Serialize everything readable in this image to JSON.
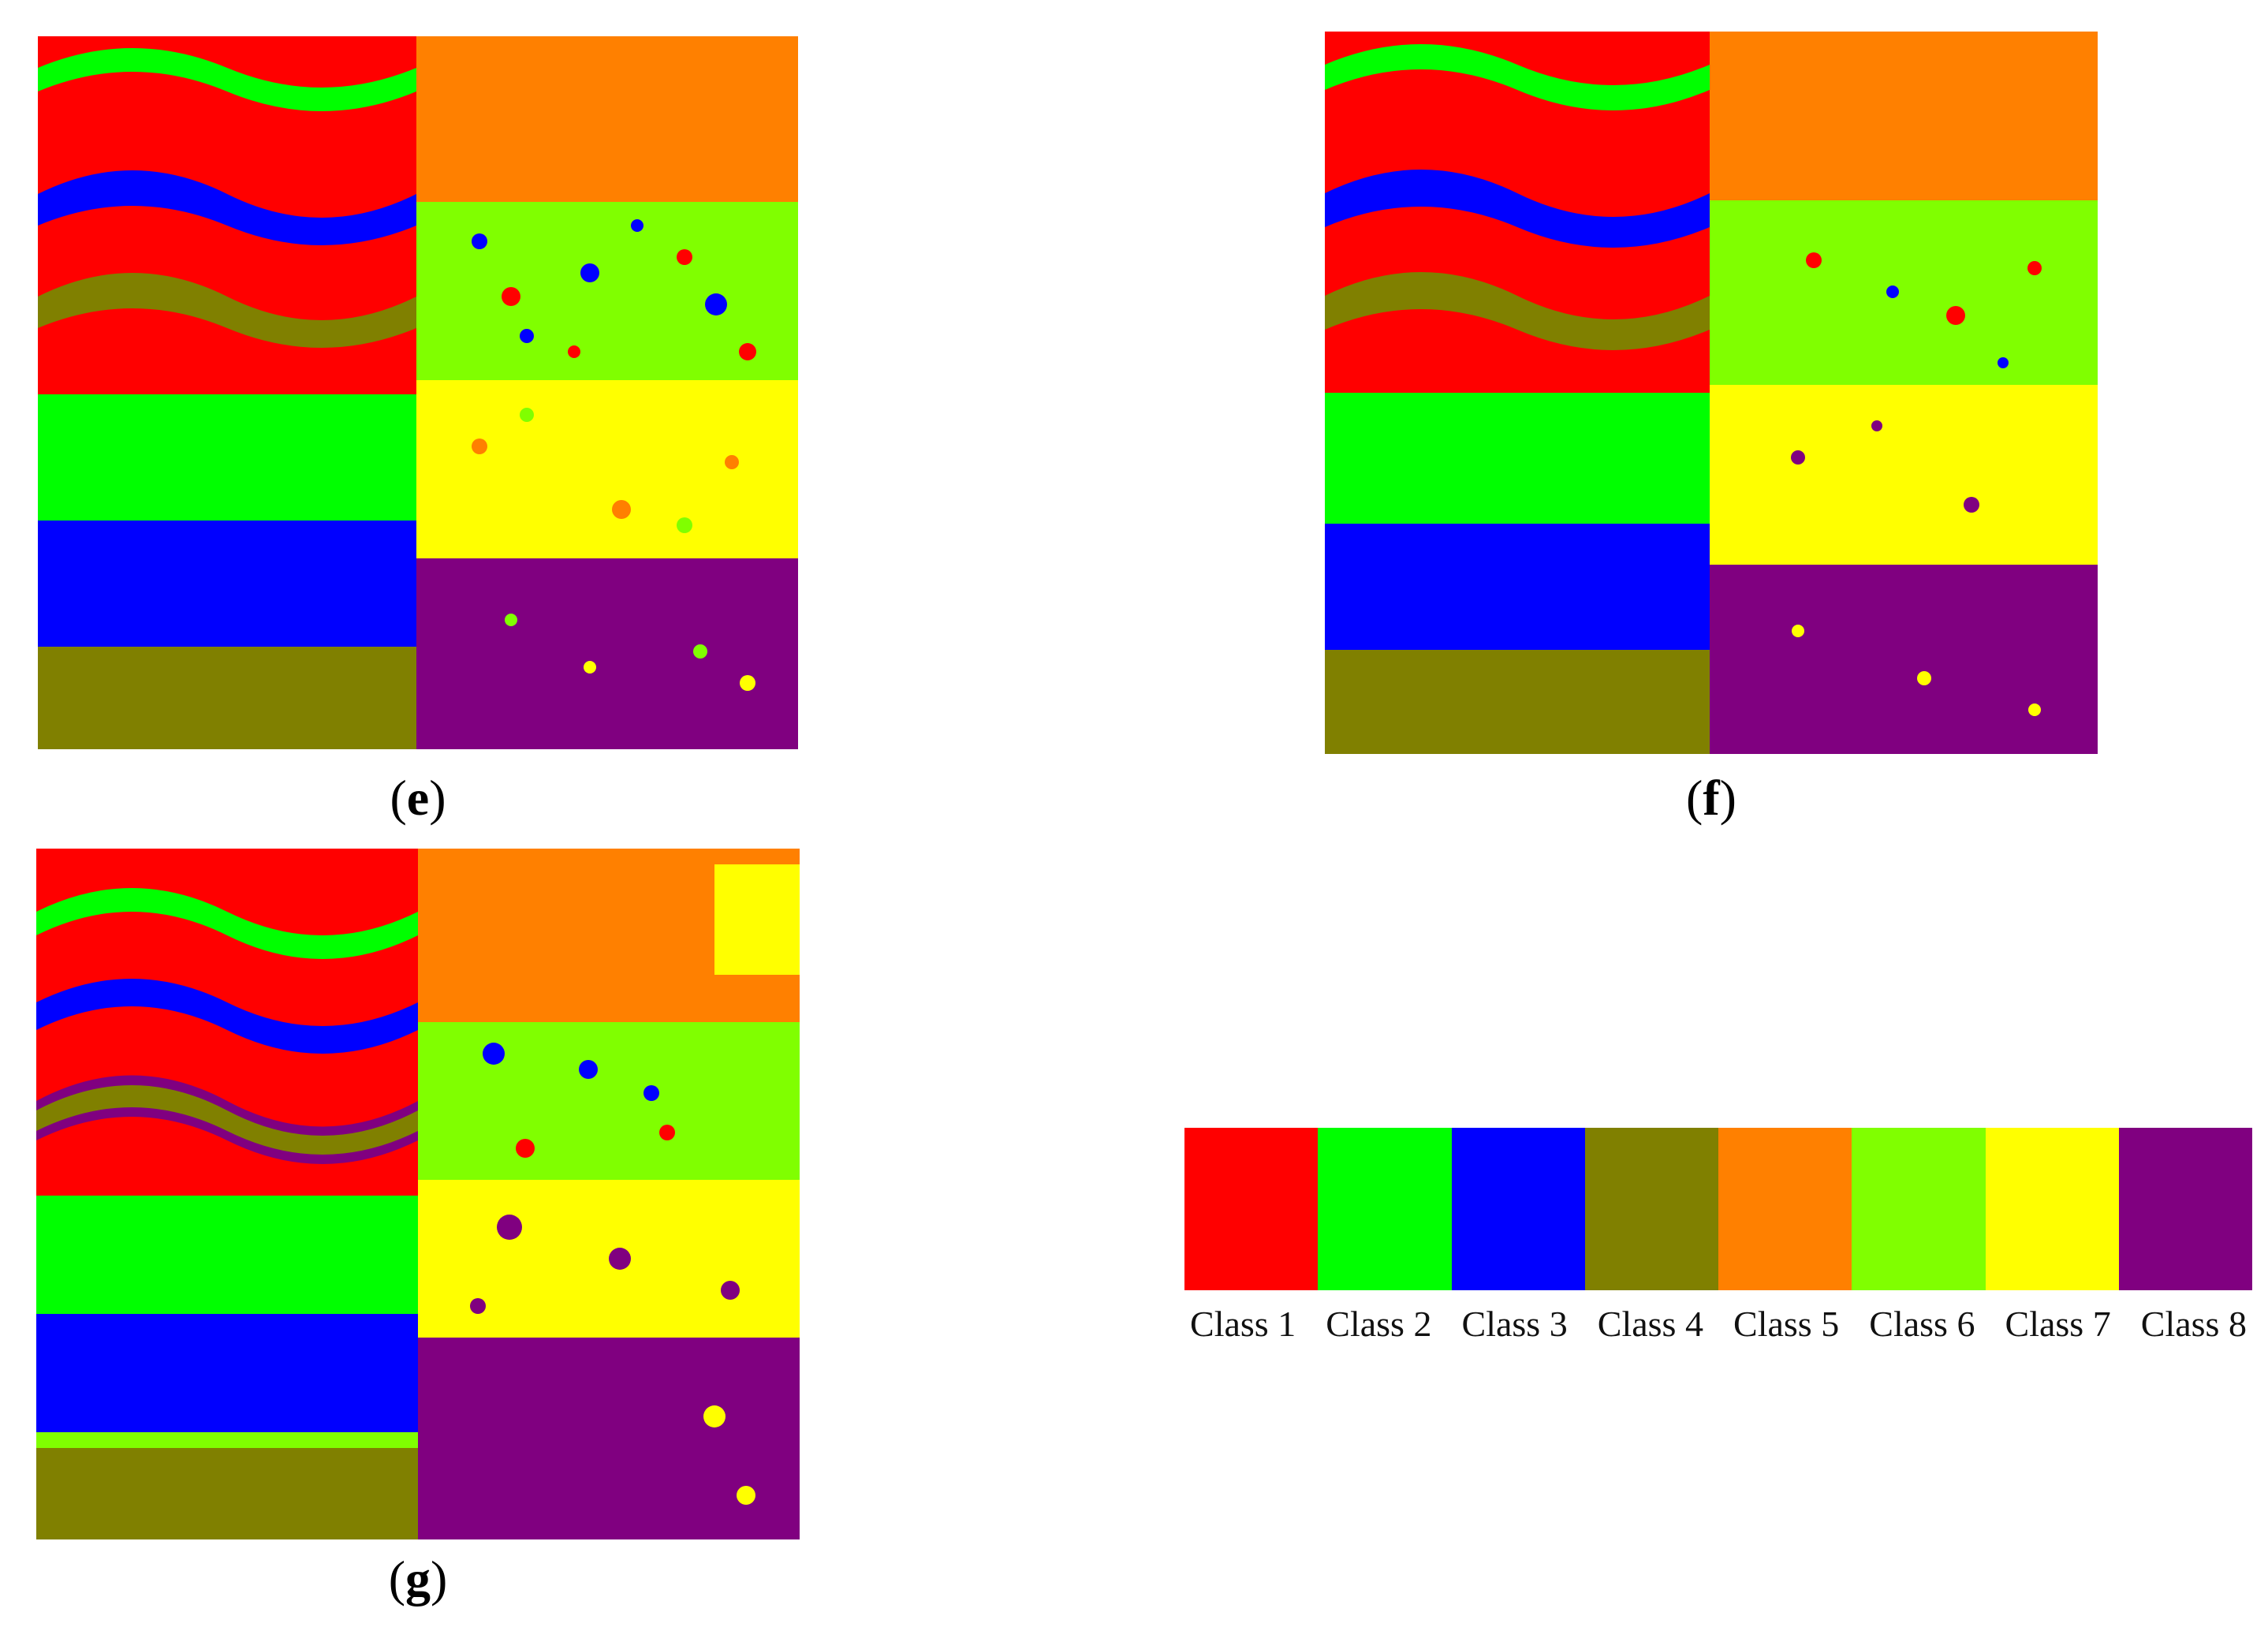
{
  "panels": [
    {
      "id": "e",
      "label": "e"
    },
    {
      "id": "f",
      "label": "f"
    },
    {
      "id": "g",
      "label": "g"
    }
  ],
  "legend": [
    {
      "name": "Class 1",
      "color": "#ff0000"
    },
    {
      "name": "Class 2",
      "color": "#00ff00"
    },
    {
      "name": "Class 3",
      "color": "#0000ff"
    },
    {
      "name": "Class 4",
      "color": "#808000"
    },
    {
      "name": "Class 5",
      "color": "#ff8000"
    },
    {
      "name": "Class 6",
      "color": "#80ff00"
    },
    {
      "name": "Class 7",
      "color": "#ffff00"
    },
    {
      "name": "Class 8",
      "color": "#800080"
    }
  ]
}
